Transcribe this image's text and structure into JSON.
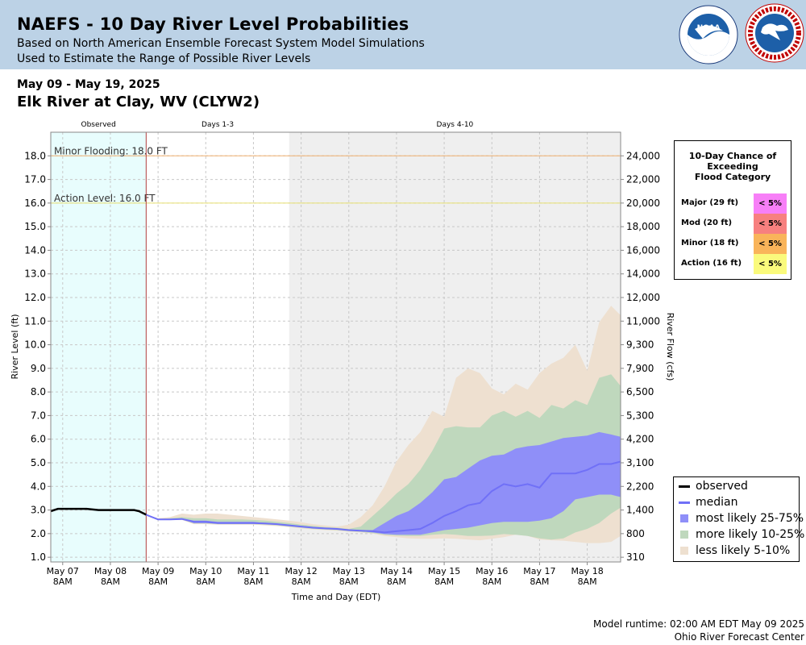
{
  "header": {
    "title": "NAEFS - 10 Day River Level Probabilities",
    "subtitle1": "Based on North American Ensemble Forecast System Model Simulations",
    "subtitle2": "Used to Estimate the Range of Possible River Levels",
    "noaa_logo": "noaa-logo",
    "nws_logo": "nws-logo"
  },
  "date_range": "May 09 - May 19, 2025",
  "location": "Elk River at Clay, WV (CLYW2)",
  "footer": {
    "runtime": "Model runtime: 02:00 AM EDT May 09 2025",
    "center": "Ohio River Forecast Center"
  },
  "prob_table": {
    "title_lines": [
      "10-Day Chance of",
      "Exceeding",
      "Flood Category"
    ],
    "rows": [
      {
        "label": "Major (29 ft)",
        "value": "< 5%",
        "color": "#f77ff7"
      },
      {
        "label": "Mod (20 ft)",
        "value": "< 5%",
        "color": "#f7807f"
      },
      {
        "label": "Minor (18 ft)",
        "value": "< 5%",
        "color": "#f9b45a"
      },
      {
        "label": "Action (16 ft)",
        "value": "< 5%",
        "color": "#fafa7c"
      }
    ]
  },
  "legend": [
    {
      "label": "observed",
      "kind": "line",
      "color": "#000000"
    },
    {
      "label": "median",
      "kind": "line",
      "color": "#7070f7"
    },
    {
      "label": "most likely 25-75%",
      "kind": "box",
      "color": "#8f8ff8"
    },
    {
      "label": "more likely 10-25%",
      "kind": "box",
      "color": "#bfd8bd"
    },
    {
      "label": "less likely 5-10%",
      "kind": "box",
      "color": "#eee0d0"
    }
  ],
  "chart_data": {
    "type": "area",
    "ylabel": "River Level (ft)",
    "y2label": "River Flow (cfs)",
    "xlabel": "Time and Day (EDT)",
    "ylim": [
      0.8,
      19.0
    ],
    "xlim": [
      -0.25,
      11.7
    ],
    "y_ticks": [
      "1.0",
      "2.0",
      "3.0",
      "4.0",
      "5.0",
      "6.0",
      "7.0",
      "8.0",
      "9.0",
      "10.0",
      "11.0",
      "12.0",
      "13.0",
      "14.0",
      "15.0",
      "16.0",
      "17.0",
      "18.0"
    ],
    "y_tick_values": [
      1,
      2,
      3,
      4,
      5,
      6,
      7,
      8,
      9,
      10,
      11,
      12,
      13,
      14,
      15,
      16,
      17,
      18
    ],
    "y2_ticks": [
      {
        "level": 1.0,
        "label": "310"
      },
      {
        "level": 2.0,
        "label": "800"
      },
      {
        "level": 3.0,
        "label": "1,400"
      },
      {
        "level": 4.0,
        "label": "2,200"
      },
      {
        "level": 5.0,
        "label": "3,100"
      },
      {
        "level": 6.0,
        "label": "4,200"
      },
      {
        "level": 7.0,
        "label": "5,300"
      },
      {
        "level": 8.0,
        "label": "6,500"
      },
      {
        "level": 9.0,
        "label": "7,900"
      },
      {
        "level": 10.0,
        "label": "9,300"
      },
      {
        "level": 11.0,
        "label": "11,000"
      },
      {
        "level": 12.0,
        "label": "12,000"
      },
      {
        "level": 13.0,
        "label": "14,000"
      },
      {
        "level": 14.0,
        "label": "16,000"
      },
      {
        "level": 15.0,
        "label": "18,000"
      },
      {
        "level": 16.0,
        "label": "20,000"
      },
      {
        "level": 17.0,
        "label": "22,000"
      },
      {
        "level": 18.0,
        "label": "24,000"
      }
    ],
    "x_ticks": [
      {
        "day": 0,
        "label": "May 07",
        "time": "8AM"
      },
      {
        "day": 1,
        "label": "May 08",
        "time": "8AM"
      },
      {
        "day": 2,
        "label": "May 09",
        "time": "8AM"
      },
      {
        "day": 3,
        "label": "May 10",
        "time": "8AM"
      },
      {
        "day": 4,
        "label": "May 11",
        "time": "8AM"
      },
      {
        "day": 5,
        "label": "May 12",
        "time": "8AM"
      },
      {
        "day": 6,
        "label": "May 13",
        "time": "8AM"
      },
      {
        "day": 7,
        "label": "May 14",
        "time": "8AM"
      },
      {
        "day": 8,
        "label": "May 15",
        "time": "8AM"
      },
      {
        "day": 9,
        "label": "May 16",
        "time": "8AM"
      },
      {
        "day": 10,
        "label": "May 17",
        "time": "8AM"
      },
      {
        "day": 11,
        "label": "May 18",
        "time": "8AM"
      }
    ],
    "periods": [
      {
        "label": "Observed",
        "start": -0.25,
        "end": 1.75,
        "color": "#e8fdfd"
      },
      {
        "label": "Days 1-3",
        "start": 1.75,
        "end": 4.75,
        "color": "#ffffff"
      },
      {
        "label": "Days 4-10",
        "start": 4.75,
        "end": 11.7,
        "color": "#efefef"
      }
    ],
    "thresholds": [
      {
        "label": "Minor Flooding: 18.0 FT",
        "level": 18.0,
        "color": "#f0b070"
      },
      {
        "label": "Action Level: 16.0 FT",
        "level": 16.0,
        "color": "#e8e070"
      }
    ],
    "now_line": 1.75,
    "observed": {
      "x": [
        -0.25,
        -0.1,
        0.0,
        0.25,
        0.5,
        0.75,
        1.0,
        1.25,
        1.5,
        1.6,
        1.75
      ],
      "y": [
        2.95,
        3.05,
        3.05,
        3.05,
        3.05,
        3.0,
        3.0,
        3.0,
        3.0,
        2.95,
        2.8
      ]
    },
    "forecast_x": [
      1.75,
      2.0,
      2.25,
      2.5,
      2.75,
      3.0,
      3.25,
      3.5,
      3.75,
      4.0,
      4.25,
      4.5,
      4.75,
      5.0,
      5.25,
      5.5,
      5.75,
      6.0,
      6.25,
      6.5,
      6.75,
      7.0,
      7.25,
      7.5,
      7.75,
      8.0,
      8.25,
      8.5,
      8.75,
      9.0,
      9.25,
      9.5,
      9.75,
      10.0,
      10.25,
      10.5,
      10.75,
      11.0,
      11.25,
      11.5,
      11.7
    ],
    "median": [
      2.8,
      2.6,
      2.6,
      2.62,
      2.5,
      2.5,
      2.45,
      2.45,
      2.45,
      2.45,
      2.43,
      2.4,
      2.35,
      2.3,
      2.25,
      2.22,
      2.2,
      2.15,
      2.12,
      2.1,
      2.05,
      2.1,
      2.15,
      2.2,
      2.45,
      2.75,
      2.95,
      3.2,
      3.3,
      3.8,
      4.1,
      4.0,
      4.1,
      3.95,
      4.55,
      4.55,
      4.55,
      4.7,
      4.95,
      4.95,
      5.05
    ],
    "band_25_75": {
      "low": [
        2.8,
        2.6,
        2.6,
        2.62,
        2.45,
        2.45,
        2.42,
        2.42,
        2.42,
        2.42,
        2.4,
        2.37,
        2.33,
        2.28,
        2.22,
        2.2,
        2.17,
        2.12,
        2.1,
        2.05,
        1.98,
        1.95,
        1.95,
        1.95,
        2.05,
        2.15,
        2.2,
        2.25,
        2.35,
        2.45,
        2.5,
        2.5,
        2.5,
        2.55,
        2.65,
        2.95,
        3.45,
        3.55,
        3.65,
        3.65,
        3.55
      ],
      "high": [
        2.8,
        2.6,
        2.62,
        2.65,
        2.55,
        2.55,
        2.5,
        2.5,
        2.5,
        2.5,
        2.45,
        2.42,
        2.38,
        2.33,
        2.28,
        2.25,
        2.22,
        2.18,
        2.15,
        2.15,
        2.45,
        2.75,
        2.95,
        3.3,
        3.75,
        4.3,
        4.4,
        4.75,
        5.1,
        5.3,
        5.35,
        5.6,
        5.7,
        5.75,
        5.9,
        6.05,
        6.1,
        6.15,
        6.3,
        6.2,
        6.1
      ]
    },
    "band_10_25": {
      "low": [
        2.8,
        2.6,
        2.6,
        2.6,
        2.43,
        2.43,
        2.4,
        2.4,
        2.4,
        2.4,
        2.38,
        2.35,
        2.3,
        2.25,
        2.2,
        2.17,
        2.15,
        2.1,
        2.07,
        2.02,
        1.95,
        1.92,
        1.9,
        1.9,
        1.95,
        1.98,
        1.95,
        1.9,
        1.9,
        1.92,
        1.98,
        1.95,
        1.9,
        1.8,
        1.75,
        1.8,
        2.05,
        2.2,
        2.45,
        2.85,
        3.1
      ],
      "high": [
        2.8,
        2.62,
        2.65,
        2.7,
        2.65,
        2.65,
        2.6,
        2.6,
        2.6,
        2.58,
        2.55,
        2.5,
        2.45,
        2.38,
        2.33,
        2.28,
        2.25,
        2.2,
        2.3,
        2.75,
        3.2,
        3.7,
        4.1,
        4.7,
        5.5,
        6.45,
        6.55,
        6.5,
        6.5,
        7.0,
        7.2,
        6.95,
        7.2,
        6.9,
        7.45,
        7.3,
        7.65,
        7.45,
        8.6,
        8.75,
        8.25
      ]
    },
    "band_5_10": {
      "low": [
        2.8,
        2.58,
        2.58,
        2.58,
        2.4,
        2.4,
        2.38,
        2.38,
        2.38,
        2.38,
        2.35,
        2.32,
        2.28,
        2.22,
        2.18,
        2.15,
        2.12,
        2.08,
        2.05,
        2.0,
        1.9,
        1.85,
        1.8,
        1.78,
        1.78,
        1.8,
        1.78,
        1.75,
        1.72,
        1.78,
        1.85,
        1.95,
        1.9,
        1.75,
        1.72,
        1.7,
        1.65,
        1.6,
        1.6,
        1.65,
        1.9
      ],
      "high": [
        2.8,
        2.65,
        2.7,
        2.85,
        2.8,
        2.85,
        2.85,
        2.8,
        2.75,
        2.7,
        2.65,
        2.6,
        2.55,
        2.48,
        2.4,
        2.35,
        2.3,
        2.38,
        2.7,
        3.2,
        4.0,
        5.05,
        5.75,
        6.3,
        7.2,
        6.95,
        8.6,
        9.0,
        8.8,
        8.15,
        7.9,
        8.35,
        8.1,
        8.8,
        9.2,
        9.45,
        10.0,
        8.9,
        10.95,
        11.65,
        11.25
      ]
    }
  }
}
